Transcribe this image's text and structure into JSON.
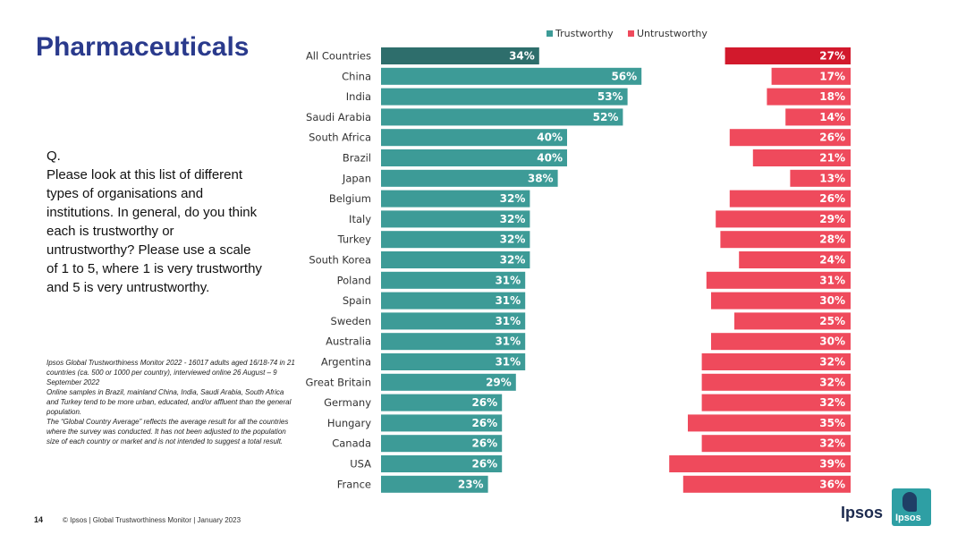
{
  "slide": {
    "title": "Pharmaceuticals",
    "page_number": "14",
    "footer": "© Ipsos | Global Trustworthiness Monitor | January 2023",
    "logo_text": "Ipsos",
    "logo_badge_text": "Ipsos"
  },
  "question": {
    "label": "Q.",
    "text": "Please look at this list of different types of organisations and institutions. In general, do you think each is trustworthy or untrustworthy? Please use a scale of 1 to 5, where 1 is very trustworthy and 5 is very untrustworthy."
  },
  "methodology": {
    "line1": "Ipsos Global Trustworthiness Monitor 2022 - 16017 adults aged 16/18-74 in 21 countries (ca. 500 or 1000 per country), interviewed online 26 August – 9 September 2022",
    "line2": "Online samples in Brazil, mainland China, India, Saudi Arabia, South Africa and Turkey tend to be more urban, educated, and/or affluent than the general population.",
    "line3": "The “Global Country Average” reflects the average result for all the countries where the survey was conducted. It has not been adjusted to the population size of each country or market and is not intended to suggest a total result."
  },
  "colors": {
    "trust": "#3d9b97",
    "trust_highlight": "#2e6e6c",
    "untrust": "#ef4a5c",
    "untrust_highlight": "#d2192c",
    "title": "#2a3a8c"
  },
  "chart_data": {
    "type": "bar",
    "orientation": "horizontal",
    "value_suffix": "%",
    "legend_position": "top",
    "categories": [
      "All Countries",
      "China",
      "India",
      "Saudi Arabia",
      "South Africa",
      "Brazil",
      "Japan",
      "Belgium",
      "Italy",
      "Turkey",
      "South Korea",
      "Poland",
      "Spain",
      "Sweden",
      "Australia",
      "Argentina",
      "Great Britain",
      "Germany",
      "Hungary",
      "Canada",
      "USA",
      "France"
    ],
    "series": [
      {
        "name": "Trustworthy",
        "values": [
          34,
          56,
          53,
          52,
          40,
          40,
          38,
          32,
          32,
          32,
          32,
          31,
          31,
          31,
          31,
          31,
          29,
          26,
          26,
          26,
          26,
          23
        ]
      },
      {
        "name": "Untrustworthy",
        "values": [
          27,
          17,
          18,
          14,
          26,
          21,
          13,
          26,
          29,
          28,
          24,
          31,
          30,
          25,
          30,
          32,
          32,
          32,
          35,
          32,
          39,
          36
        ]
      }
    ],
    "highlight_category": "All Countries"
  }
}
